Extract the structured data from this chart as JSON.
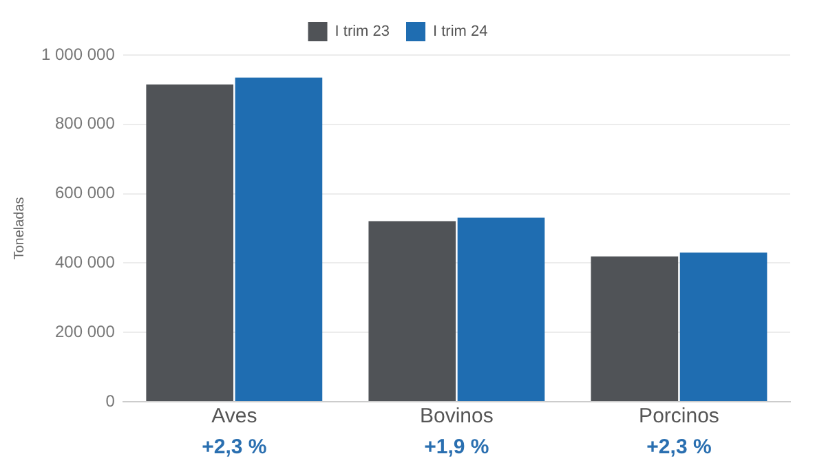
{
  "chart_data": {
    "type": "bar",
    "ylabel": "Toneladas",
    "categories": [
      "Aves",
      "Bovinos",
      "Porcinos"
    ],
    "series": [
      {
        "name": "I trim 23",
        "color": "#505357",
        "values": [
          915000,
          521000,
          419000
        ]
      },
      {
        "name": "I trim 24",
        "color": "#1f6db1",
        "values": [
          935000,
          531000,
          430000
        ]
      }
    ],
    "ylim": [
      0,
      1000000
    ],
    "yticks": [
      {
        "value": 0,
        "label": "0"
      },
      {
        "value": 200000,
        "label": "200 000"
      },
      {
        "value": 400000,
        "label": "400 000"
      },
      {
        "value": 600000,
        "label": "600 000"
      },
      {
        "value": 800000,
        "label": "800 000"
      },
      {
        "value": 1000000,
        "label": "1 000 000"
      }
    ],
    "grid": "y",
    "legend": "top",
    "annotations": [
      "+2,3 %",
      "+1,9 %",
      "+2,3 %"
    ]
  }
}
